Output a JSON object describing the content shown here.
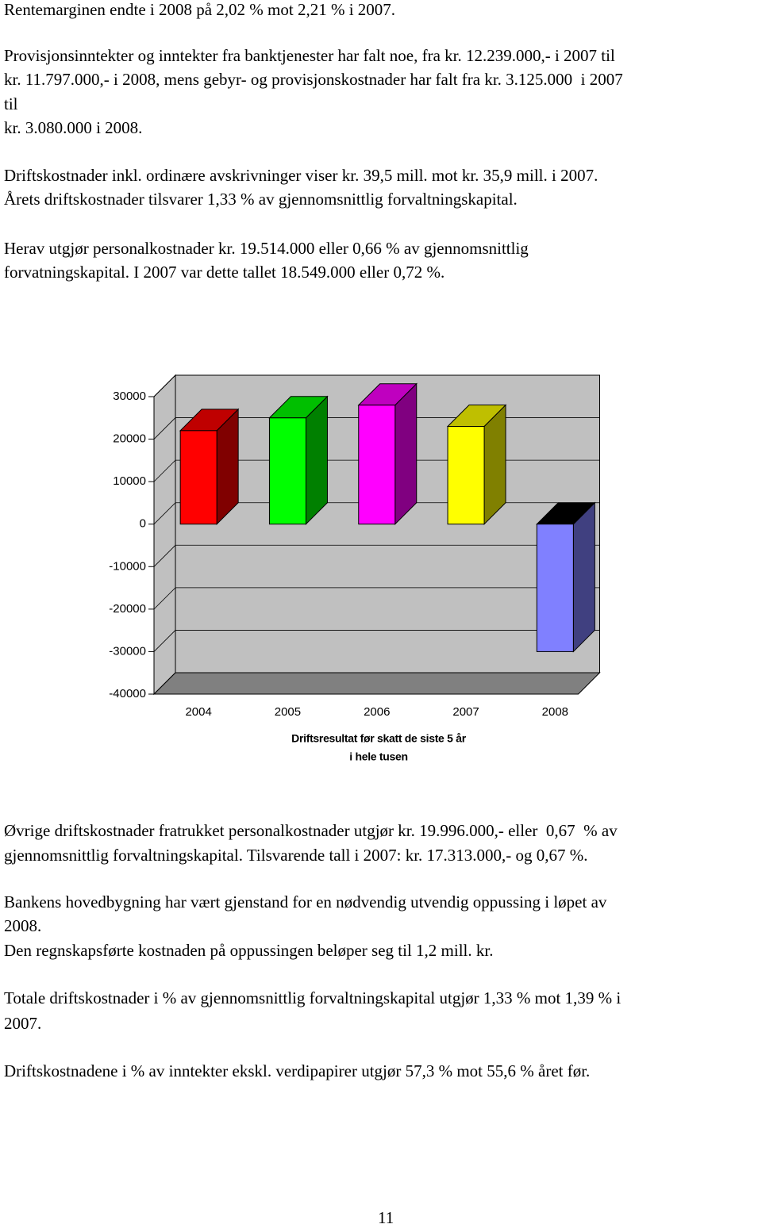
{
  "paragraphs": [
    {
      "lines": [
        "Rentemarginen endte i 2008 på 2,02 % mot 2,21 % i 2007."
      ]
    },
    {
      "lines": [
        "Provisjonsinntekter og inntekter fra banktjenester har falt noe, fra kr. 12.239.000,- i 2007 til",
        "kr. 11.797.000,- i 2008, mens gebyr- og provisjonskostnader har falt fra kr. 3.125.000  i 2007",
        "til",
        "kr. 3.080.000 i 2008."
      ]
    },
    {
      "lines": [
        "Driftskostnader inkl. ordinære avskrivninger viser kr. 39,5 mill. mot kr. 35,9 mill. i 2007.",
        "Årets driftskostnader tilsvarer 1,33 % av gjennomsnittlig forvaltningskapital."
      ]
    },
    {
      "lines": [
        "Herav utgjør personalkostnader kr. 19.514.000 eller 0,66 % av gjennomsnittlig",
        "forvatningskapital. I 2007 var dette tallet 18.549.000 eller 0,72 %."
      ]
    },
    {
      "lines": [
        "Øvrige driftskostnader fratrukket personalkostnader utgjør kr. 19.996.000,- eller  0,67  % av",
        "gjennomsnittlig forvaltningskapital. Tilsvarende tall i 2007: kr. 17.313.000,- og 0,67 %."
      ]
    },
    {
      "lines": [
        "Bankens hovedbygning har vært gjenstand for en nødvendig utvendig oppussing i løpet av",
        "2008.",
        "Den regnskapsførte kostnaden på oppussingen beløper seg til 1,2 mill. kr."
      ]
    },
    {
      "lines": [
        "Totale driftskostnader i % av gjennomsnittlig forvaltningskapital utgjør 1,33 % mot 1,39 % i",
        "2007."
      ]
    },
    {
      "lines": [
        "Driftskostnadene i % av inntekter ekskl. verdipapirer utgjør 57,3 % mot 55,6 % året før."
      ]
    }
  ],
  "chart_data": {
    "type": "bar3d",
    "xlabel": [
      "Driftsresultat før skatt de siste 5 år",
      "i hele tusen"
    ],
    "categories": [
      "2004",
      "2005",
      "2006",
      "2007",
      "2008"
    ],
    "values": [
      22000,
      25000,
      28000,
      23000,
      -30000
    ],
    "colors": [
      "#ff0000",
      "#00ff00",
      "#ff00ff",
      "#ffff00",
      "#8080ff"
    ],
    "ylim": [
      -40000,
      30000
    ],
    "yticks": [
      -40000,
      -30000,
      -20000,
      -10000,
      0,
      10000,
      20000,
      30000
    ],
    "grid": true
  },
  "page_number": "11"
}
